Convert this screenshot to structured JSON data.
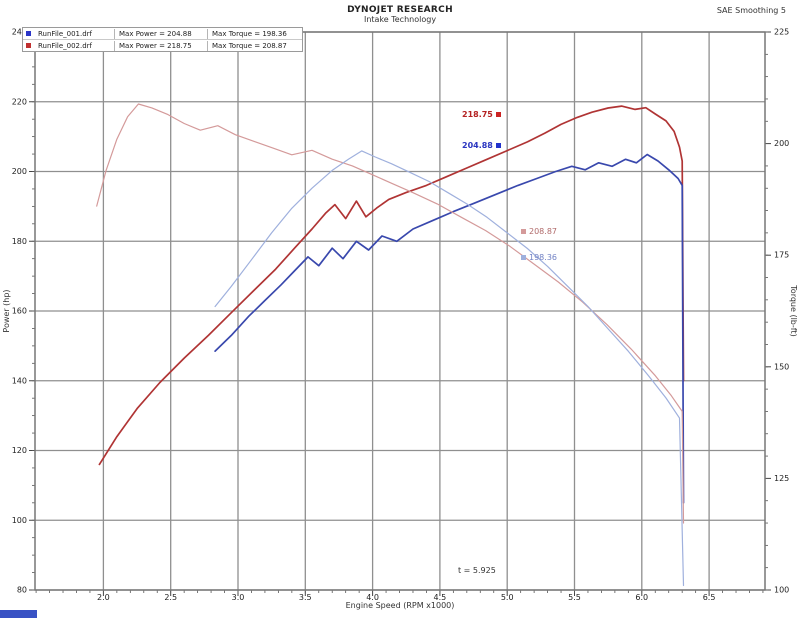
{
  "header": {
    "title_line1": "DYNOJET RESEARCH",
    "title_line2": "Intake Technology",
    "top_right": "SAE Smoothing 5"
  },
  "legend": {
    "rows": [
      {
        "color": "#2b35c8",
        "file": "RunFile_001.drf",
        "power": "Max Power = 204.88",
        "torque": "Max Torque = 198.36"
      },
      {
        "color": "#c03030",
        "file": "RunFile_002.drf",
        "power": "Max Power = 218.75",
        "torque": "Max Torque = 208.87"
      }
    ]
  },
  "chart_data": {
    "type": "line",
    "title": "DYNOJET RESEARCH — Intake Technology",
    "xlabel": "Engine Speed (RPM x1000)",
    "ylabel_left": "Power (hp)",
    "ylabel_right": "Torque (lb-ft)",
    "grid": true,
    "legend_position": "top-left",
    "x_ticks": [
      "2.0",
      "2.5",
      "3.0",
      "3.5",
      "4.0",
      "4.5",
      "5.0",
      "5.5",
      "6.0",
      "6.5"
    ],
    "y_left": {
      "max": 240,
      "min": 80,
      "step": 20
    },
    "y_right": {
      "max": 225,
      "min": 100,
      "step": 25
    },
    "annotations": {
      "power_red": "218.75",
      "power_blue": "204.88",
      "torque_red": "208.87",
      "torque_blue": "198.36",
      "cursor": "t = 5.925"
    },
    "series": [
      {
        "name": "RunFile_002.drf Power (hp)",
        "axis": "left",
        "color": "#b03434",
        "width": 1.7,
        "points": [
          [
            1.97,
            116
          ],
          [
            2.1,
            124
          ],
          [
            2.25,
            132
          ],
          [
            2.42,
            139.5
          ],
          [
            2.6,
            146.5
          ],
          [
            2.78,
            153
          ],
          [
            2.95,
            159.5
          ],
          [
            3.12,
            166
          ],
          [
            3.28,
            172
          ],
          [
            3.42,
            178
          ],
          [
            3.55,
            183.5
          ],
          [
            3.65,
            188
          ],
          [
            3.72,
            190.5
          ],
          [
            3.8,
            186.5
          ],
          [
            3.88,
            191.5
          ],
          [
            3.95,
            187
          ],
          [
            4.03,
            189.5
          ],
          [
            4.12,
            192
          ],
          [
            4.25,
            194
          ],
          [
            4.4,
            196
          ],
          [
            4.55,
            198.5
          ],
          [
            4.7,
            201
          ],
          [
            4.85,
            203.5
          ],
          [
            5.0,
            206
          ],
          [
            5.15,
            208.5
          ],
          [
            5.28,
            211
          ],
          [
            5.4,
            213.5
          ],
          [
            5.52,
            215.5
          ],
          [
            5.63,
            217
          ],
          [
            5.75,
            218.2
          ],
          [
            5.85,
            218.75
          ],
          [
            5.95,
            217.8
          ],
          [
            6.03,
            218.3
          ],
          [
            6.1,
            216.5
          ],
          [
            6.18,
            214.5
          ],
          [
            6.24,
            211.5
          ],
          [
            6.28,
            207
          ],
          [
            6.3,
            203
          ],
          [
            6.31,
            140
          ]
        ]
      },
      {
        "name": "RunFile_001.drf Power (hp)",
        "axis": "left",
        "color": "#3948ad",
        "width": 1.7,
        "points": [
          [
            2.83,
            148.5
          ],
          [
            2.95,
            153
          ],
          [
            3.08,
            158.5
          ],
          [
            3.2,
            163
          ],
          [
            3.32,
            167.5
          ],
          [
            3.42,
            171.5
          ],
          [
            3.52,
            175.5
          ],
          [
            3.6,
            173
          ],
          [
            3.7,
            178
          ],
          [
            3.78,
            175
          ],
          [
            3.88,
            180
          ],
          [
            3.97,
            177.5
          ],
          [
            4.07,
            181.5
          ],
          [
            4.18,
            180
          ],
          [
            4.3,
            183.5
          ],
          [
            4.45,
            186
          ],
          [
            4.6,
            188.5
          ],
          [
            4.76,
            191
          ],
          [
            4.92,
            193.5
          ],
          [
            5.08,
            196
          ],
          [
            5.22,
            198
          ],
          [
            5.36,
            200
          ],
          [
            5.48,
            201.5
          ],
          [
            5.58,
            200.5
          ],
          [
            5.68,
            202.5
          ],
          [
            5.78,
            201.5
          ],
          [
            5.88,
            203.5
          ],
          [
            5.96,
            202.5
          ],
          [
            6.04,
            204.88
          ],
          [
            6.12,
            203
          ],
          [
            6.2,
            200.5
          ],
          [
            6.27,
            198
          ],
          [
            6.3,
            196
          ],
          [
            6.31,
            105
          ]
        ]
      },
      {
        "name": "RunFile_002.drf Torque (lb-ft)",
        "axis": "right",
        "color": "#d49a9a",
        "width": 1.2,
        "points": [
          [
            1.95,
            186
          ],
          [
            2.02,
            194
          ],
          [
            2.1,
            201
          ],
          [
            2.18,
            206
          ],
          [
            2.26,
            208.87
          ],
          [
            2.36,
            208
          ],
          [
            2.48,
            206.5
          ],
          [
            2.6,
            204.5
          ],
          [
            2.72,
            203
          ],
          [
            2.85,
            204
          ],
          [
            2.98,
            202
          ],
          [
            3.12,
            200.5
          ],
          [
            3.26,
            199
          ],
          [
            3.4,
            197.5
          ],
          [
            3.55,
            198.5
          ],
          [
            3.7,
            196.5
          ],
          [
            3.85,
            195
          ],
          [
            4.0,
            193
          ],
          [
            4.15,
            191
          ],
          [
            4.3,
            189
          ],
          [
            4.48,
            186.5
          ],
          [
            4.66,
            183.5
          ],
          [
            4.84,
            180.5
          ],
          [
            5.02,
            177
          ],
          [
            5.2,
            173
          ],
          [
            5.38,
            169
          ],
          [
            5.56,
            164.5
          ],
          [
            5.74,
            159.5
          ],
          [
            5.92,
            154
          ],
          [
            6.1,
            148
          ],
          [
            6.22,
            143.5
          ],
          [
            6.3,
            140
          ],
          [
            6.31,
            115
          ]
        ]
      },
      {
        "name": "RunFile_001.drf Torque (lb-ft)",
        "axis": "right",
        "color": "#9fb0dd",
        "width": 1.2,
        "points": [
          [
            2.83,
            163.5
          ],
          [
            2.95,
            168
          ],
          [
            3.1,
            174
          ],
          [
            3.25,
            180
          ],
          [
            3.4,
            185.5
          ],
          [
            3.55,
            190
          ],
          [
            3.7,
            194
          ],
          [
            3.82,
            196.5
          ],
          [
            3.92,
            198.36
          ],
          [
            4.02,
            197
          ],
          [
            4.14,
            195.5
          ],
          [
            4.28,
            193.5
          ],
          [
            4.42,
            191.5
          ],
          [
            4.56,
            189
          ],
          [
            4.7,
            186.5
          ],
          [
            4.85,
            183.5
          ],
          [
            5.0,
            180
          ],
          [
            5.15,
            176.5
          ],
          [
            5.3,
            172.5
          ],
          [
            5.45,
            168
          ],
          [
            5.6,
            163.5
          ],
          [
            5.75,
            158.5
          ],
          [
            5.9,
            153.5
          ],
          [
            6.05,
            148
          ],
          [
            6.18,
            143
          ],
          [
            6.28,
            138.5
          ],
          [
            6.31,
            101
          ]
        ]
      }
    ]
  }
}
